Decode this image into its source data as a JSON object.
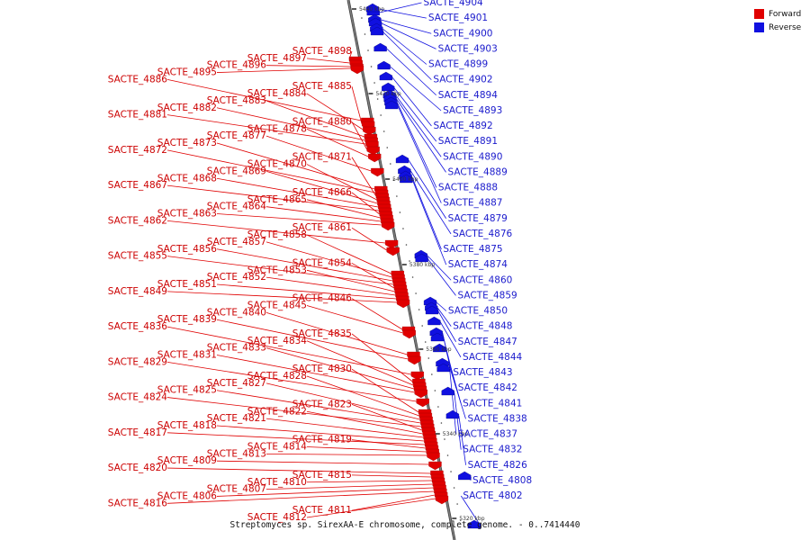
{
  "colors": {
    "forward": "#e00000",
    "reverse": "#1010e0",
    "backbone": "#808080"
  },
  "legend": [
    {
      "label": "Forward",
      "color": "#e00000"
    },
    {
      "label": "Reverse",
      "color": "#1010e0"
    }
  ],
  "caption": "Streptomyces sp. SirexAA-E chromosome, complete genome. - 0..7414440",
  "ticks": [
    {
      "label": "5440 kbp",
      "pos": 10
    },
    {
      "label": "5420 kbp",
      "pos": 104
    },
    {
      "label": "5400 kbp",
      "pos": 199
    },
    {
      "label": "5380 kbp",
      "pos": 294
    },
    {
      "label": "5360 kbp",
      "pos": 388
    },
    {
      "label": "5340 kbp",
      "pos": 482
    },
    {
      "label": "5320 kbp",
      "pos": 576
    }
  ],
  "forward_genes": [
    {
      "label": "SACTE_4898",
      "pos": 60
    },
    {
      "label": "SACTE_4897",
      "pos": 64
    },
    {
      "label": "SACTE_4896",
      "pos": 68
    },
    {
      "label": "SACTE_4895",
      "pos": 70
    },
    {
      "label": "SACTE_4886",
      "pos": 128
    },
    {
      "label": "SACTE_4885",
      "pos": 132
    },
    {
      "label": "SACTE_4884",
      "pos": 138
    },
    {
      "label": "SACTE_4883",
      "pos": 146
    },
    {
      "label": "SACTE_4882",
      "pos": 150
    },
    {
      "label": "SACTE_4881",
      "pos": 154
    },
    {
      "label": "SACTE_4880",
      "pos": 160
    },
    {
      "label": "SACTE_4878",
      "pos": 168
    },
    {
      "label": "SACTE_4877",
      "pos": 184
    },
    {
      "label": "SACTE_4873",
      "pos": 204
    },
    {
      "label": "SACTE_4872",
      "pos": 208
    },
    {
      "label": "SACTE_4871",
      "pos": 212
    },
    {
      "label": "SACTE_4870",
      "pos": 216
    },
    {
      "label": "SACTE_4869",
      "pos": 220
    },
    {
      "label": "SACTE_4868",
      "pos": 224
    },
    {
      "label": "SACTE_4867",
      "pos": 228
    },
    {
      "label": "SACTE_4866",
      "pos": 232
    },
    {
      "label": "SACTE_4865",
      "pos": 236
    },
    {
      "label": "SACTE_4864",
      "pos": 240
    },
    {
      "label": "SACTE_4863",
      "pos": 244
    },
    {
      "label": "SACTE_4862",
      "pos": 264
    },
    {
      "label": "SACTE_4861",
      "pos": 272
    },
    {
      "label": "SACTE_4858",
      "pos": 298
    },
    {
      "label": "SACTE_4857",
      "pos": 302
    },
    {
      "label": "SACTE_4856",
      "pos": 306
    },
    {
      "label": "SACTE_4855",
      "pos": 310
    },
    {
      "label": "SACTE_4854",
      "pos": 314
    },
    {
      "label": "SACTE_4853",
      "pos": 318
    },
    {
      "label": "SACTE_4852",
      "pos": 322
    },
    {
      "label": "SACTE_4851",
      "pos": 326
    },
    {
      "label": "SACTE_4849",
      "pos": 330
    },
    {
      "label": "SACTE_4846",
      "pos": 360
    },
    {
      "label": "SACTE_4845",
      "pos": 364
    },
    {
      "label": "SACTE_4840",
      "pos": 388
    },
    {
      "label": "SACTE_4839",
      "pos": 393
    },
    {
      "label": "SACTE_4836",
      "pos": 410
    },
    {
      "label": "SACTE_4835",
      "pos": 418
    },
    {
      "label": "SACTE_4834",
      "pos": 422
    },
    {
      "label": "SACTE_4833",
      "pos": 426
    },
    {
      "label": "SACTE_4831",
      "pos": 430
    },
    {
      "label": "SACTE_4829",
      "pos": 440
    },
    {
      "label": "SACTE_4830",
      "pos": 452
    },
    {
      "label": "SACTE_4828",
      "pos": 456
    },
    {
      "label": "SACTE_4827",
      "pos": 460
    },
    {
      "label": "SACTE_4825",
      "pos": 464
    },
    {
      "label": "SACTE_4824",
      "pos": 468
    },
    {
      "label": "SACTE_4823",
      "pos": 472
    },
    {
      "label": "SACTE_4822",
      "pos": 476
    },
    {
      "label": "SACTE_4821",
      "pos": 480
    },
    {
      "label": "SACTE_4818",
      "pos": 484
    },
    {
      "label": "SACTE_4817",
      "pos": 488
    },
    {
      "label": "SACTE_4819",
      "pos": 492
    },
    {
      "label": "SACTE_4814",
      "pos": 496
    },
    {
      "label": "SACTE_4813",
      "pos": 500
    },
    {
      "label": "SACTE_4809",
      "pos": 510
    },
    {
      "label": "SACTE_4820",
      "pos": 520
    },
    {
      "label": "SACTE_4815",
      "pos": 524
    },
    {
      "label": "SACTE_4810",
      "pos": 528
    },
    {
      "label": "SACTE_4807",
      "pos": 532
    },
    {
      "label": "SACTE_4806",
      "pos": 536
    },
    {
      "label": "SACTE_4816",
      "pos": 540
    },
    {
      "label": "SACTE_4811",
      "pos": 544
    },
    {
      "label": "SACTE_4812",
      "pos": 548
    }
  ],
  "reverse_genes": [
    {
      "label": "SACTE_4904",
      "pos": 8
    },
    {
      "label": "SACTE_4901",
      "pos": 4
    },
    {
      "label": "SACTE_4900",
      "pos": 16
    },
    {
      "label": "SACTE_4903",
      "pos": 20
    },
    {
      "label": "SACTE_4899",
      "pos": 26
    },
    {
      "label": "SACTE_4902",
      "pos": 30
    },
    {
      "label": "SACTE_4894",
      "pos": 48
    },
    {
      "label": "SACTE_4893",
      "pos": 68
    },
    {
      "label": "SACTE_4892",
      "pos": 80
    },
    {
      "label": "SACTE_4891",
      "pos": 92
    },
    {
      "label": "SACTE_4890",
      "pos": 100
    },
    {
      "label": "SACTE_4889",
      "pos": 104
    },
    {
      "label": "SACTE_4888",
      "pos": 108
    },
    {
      "label": "SACTE_4887",
      "pos": 112
    },
    {
      "label": "SACTE_4879",
      "pos": 172
    },
    {
      "label": "SACTE_4876",
      "pos": 184
    },
    {
      "label": "SACTE_4875",
      "pos": 190
    },
    {
      "label": "SACTE_4874",
      "pos": 194
    },
    {
      "label": "SACTE_4860",
      "pos": 278
    },
    {
      "label": "SACTE_4859",
      "pos": 282
    },
    {
      "label": "SACTE_4850",
      "pos": 330
    },
    {
      "label": "SACTE_4848",
      "pos": 336
    },
    {
      "label": "SACTE_4847",
      "pos": 340
    },
    {
      "label": "SACTE_4844",
      "pos": 352
    },
    {
      "label": "SACTE_4843",
      "pos": 364
    },
    {
      "label": "SACTE_4842",
      "pos": 370
    },
    {
      "label": "SACTE_4841",
      "pos": 382
    },
    {
      "label": "SACTE_4838",
      "pos": 398
    },
    {
      "label": "SACTE_4837",
      "pos": 404
    },
    {
      "label": "SACTE_4832",
      "pos": 430
    },
    {
      "label": "SACTE_4826",
      "pos": 456
    },
    {
      "label": "SACTE_4808",
      "pos": 524
    },
    {
      "label": "SACTE_4802",
      "pos": 578
    }
  ]
}
